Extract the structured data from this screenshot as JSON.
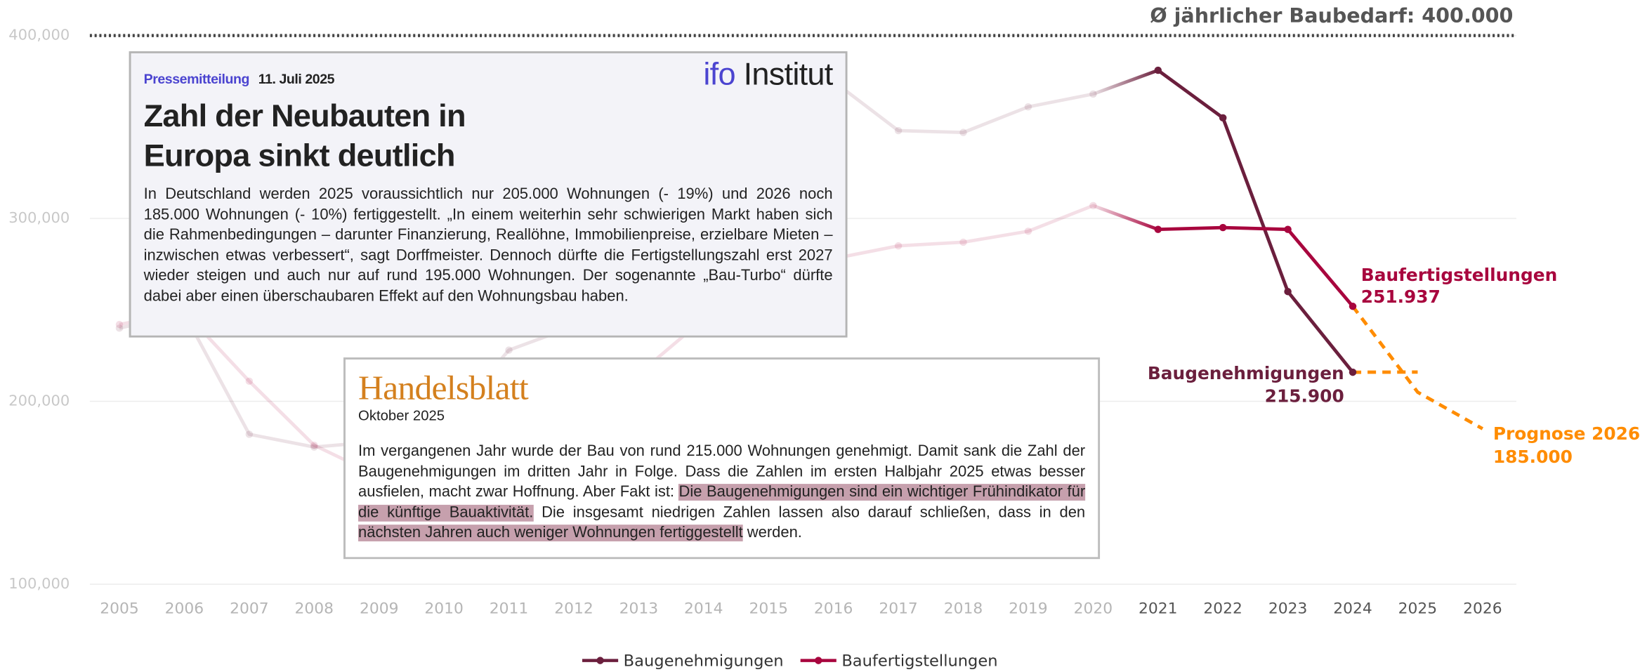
{
  "chart_data": {
    "type": "line",
    "categories": [
      "2005",
      "2006",
      "2007",
      "2008",
      "2009",
      "2010",
      "2011",
      "2012",
      "2013",
      "2014",
      "2015",
      "2016",
      "2017",
      "2018",
      "2019",
      "2020",
      "2021",
      "2022",
      "2023",
      "2024",
      "2025",
      "2026"
    ],
    "series": [
      {
        "name": "Baugenehmigungen",
        "color": "#6b1f3d",
        "values": [
          240000,
          248000,
          182000,
          175000,
          178000,
          187000,
          228000,
          241000,
          271000,
          285000,
          313000,
          375000,
          348000,
          347000,
          361000,
          368000,
          381000,
          355000,
          260000,
          215900,
          null,
          null
        ],
        "value_labels": [
          null,
          null,
          null,
          null,
          null,
          null,
          null,
          null,
          null,
          null,
          null,
          null,
          null,
          null,
          null,
          null,
          null,
          null,
          null,
          "215.900",
          null,
          null
        ]
      },
      {
        "name": "Baufertigstellungen",
        "color": "#a8063e",
        "values": [
          242000,
          249000,
          211000,
          176000,
          159000,
          160000,
          183000,
          200000,
          215000,
          245000,
          248000,
          278000,
          285000,
          287000,
          293000,
          307000,
          294000,
          295000,
          294000,
          251937,
          null,
          null
        ],
        "value_labels": [
          null,
          null,
          null,
          null,
          null,
          null,
          null,
          null,
          null,
          null,
          null,
          null,
          null,
          null,
          null,
          null,
          null,
          null,
          null,
          "251.937",
          null,
          null
        ]
      },
      {
        "color": "#ff8c00",
        "dashed": true,
        "values": [
          null,
          null,
          null,
          null,
          null,
          null,
          null,
          null,
          null,
          null,
          null,
          null,
          null,
          null,
          null,
          null,
          null,
          null,
          null,
          215900,
          216000,
          null
        ]
      },
      {
        "color": "#ff8c00",
        "dashed": true,
        "values": [
          null,
          null,
          null,
          null,
          null,
          null,
          null,
          null,
          null,
          null,
          null,
          null,
          null,
          null,
          null,
          null,
          null,
          null,
          null,
          251937,
          205000,
          185000
        ],
        "value_labels": [
          null,
          null,
          null,
          null,
          null,
          null,
          null,
          null,
          null,
          null,
          null,
          null,
          null,
          null,
          null,
          null,
          null,
          null,
          null,
          null,
          null,
          "185.000"
        ]
      }
    ],
    "annotations": [
      {
        "text": "Prognose 2026:"
      }
    ],
    "reference": {
      "label": "Ø jährlicher Baubedarf: 400.000",
      "value": 400000
    },
    "ylim": [
      100000,
      400000
    ],
    "yticks": [
      {
        "value": 100000,
        "label": "100,000"
      },
      {
        "value": 200000,
        "label": "200,000"
      },
      {
        "value": 300000,
        "label": "300,000"
      },
      {
        "value": 400000,
        "label": "400,000"
      }
    ],
    "grid": true,
    "legend": "bottom"
  },
  "press_release": {
    "label": "Pressemitteilung",
    "date": "11. Juli 2025",
    "logo": [
      "ifo",
      "Institut"
    ],
    "title": [
      "Zahl der Neubauten in",
      "Europa sinkt deutlich"
    ],
    "text": "In Deutschland werden 2025 voraussichtlich nur 205.000 Wohnungen (- 19%) und 2026 noch 185.000 Wohnungen (- 10%) fertiggestellt. „In einem weiterhin sehr schwierigen Markt haben sich die Rahmenbedingungen – darunter Finanzierung, Reallöhne, Immobilienpreise, erzielbare Mieten – inzwischen etwas verbessert“, sagt Dorffmeister. Dennoch dürfte die Fertigstellungszahl erst 2027 wieder steigen und auch nur auf rund 195.000 Wohnungen. Der sogenannte „Bau-Turbo“ dürfte dabei aber einen überschaubaren Effekt auf den Wohnungsbau haben."
  },
  "article": {
    "source": "Handelsblatt",
    "date": "Oktober 2025",
    "text": [
      {
        "text": "Im vergangenen Jahr wurde der Bau von rund 215.000 Wohnungen genehmigt. Damit sank die Zahl der Baugenehmigungen im dritten Jahr in Folge. Dass die Zahlen im ersten Halbjahr 2025 etwas besser ausfielen, macht zwar Hoffnung. Aber Fakt ist: ",
        "highlight": false
      },
      {
        "text": "Die Baugenehmigungen sind ein wichtiger Frühindikator für die künftige Bauaktivität.",
        "highlight": true
      },
      {
        "text": " Die insgesamt niedrigen Zahlen lassen also darauf schließen, dass in den ",
        "highlight": false
      },
      {
        "text": "nächsten Jahren auch weniger Wohnungen fertiggestellt",
        "highlight": true
      },
      {
        "text": " werden.",
        "highlight": false
      }
    ]
  }
}
